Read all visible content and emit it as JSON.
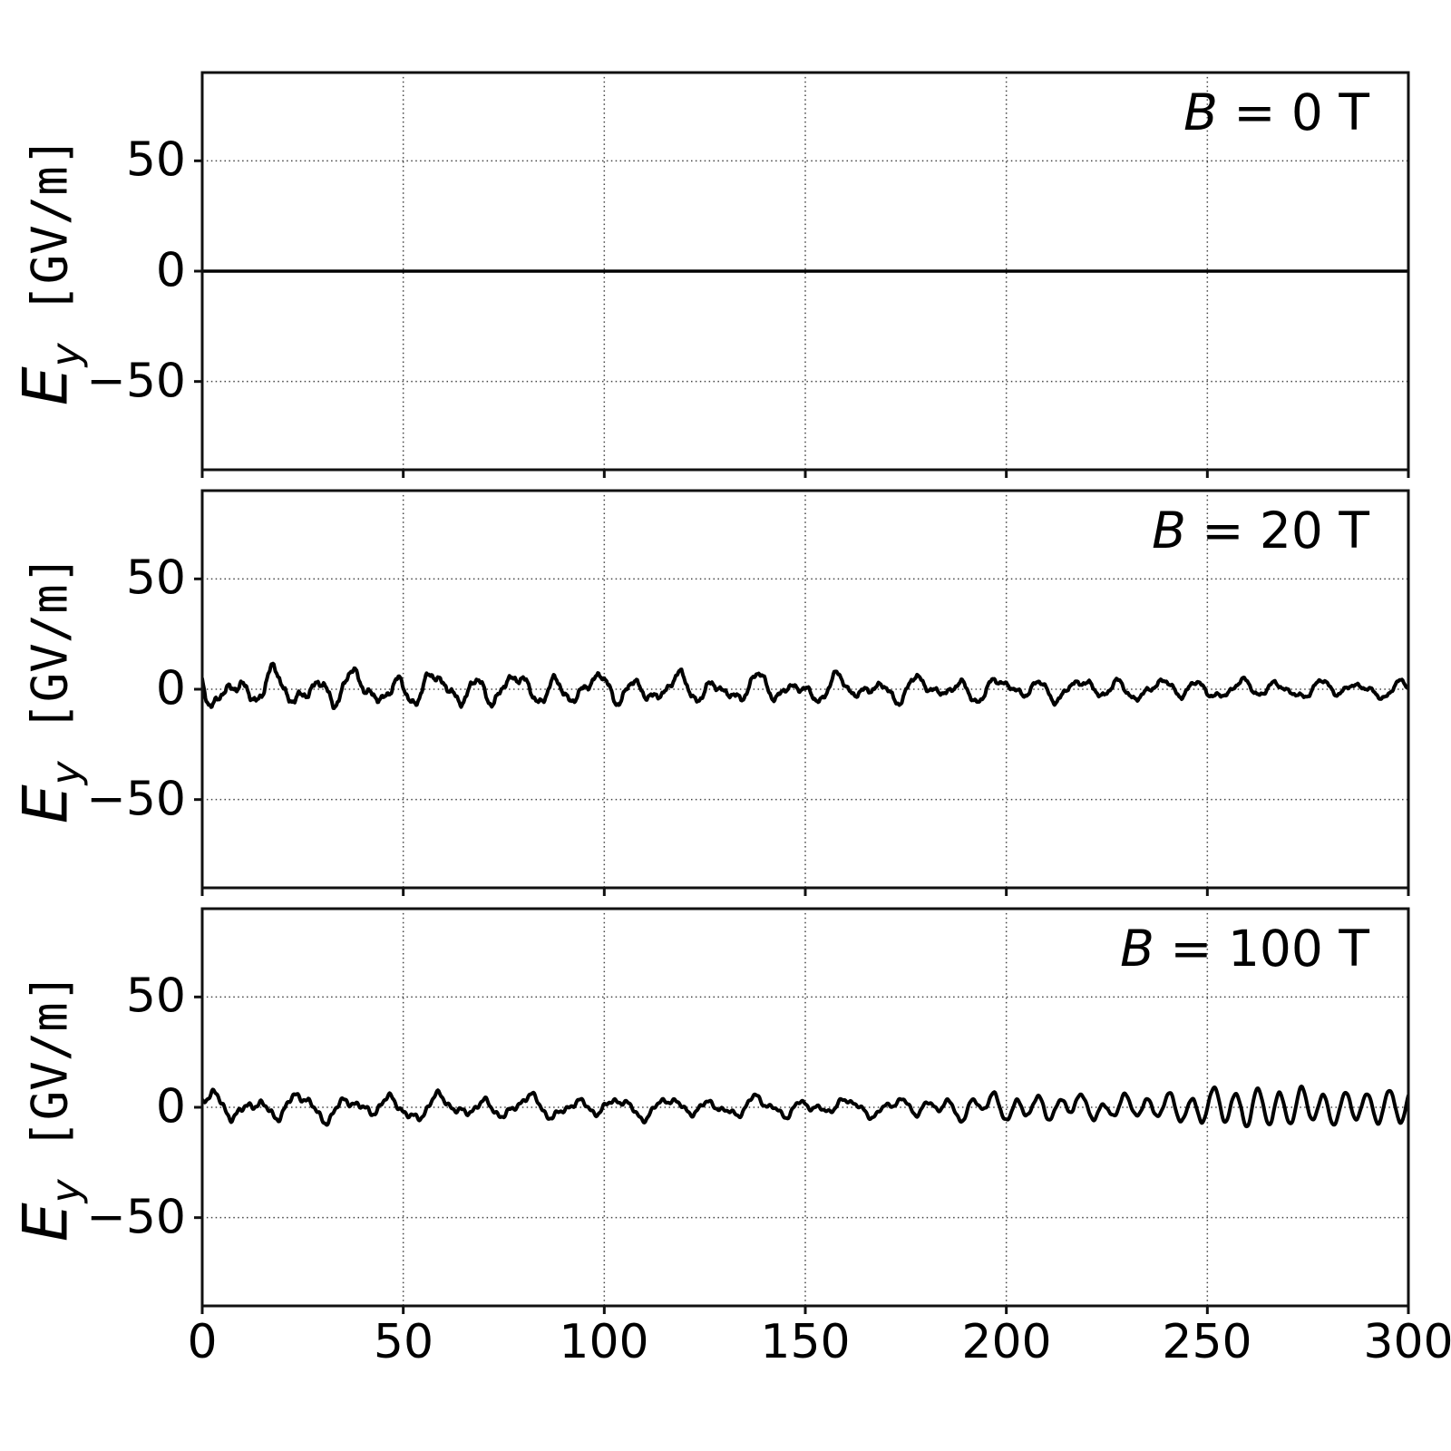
{
  "figure": {
    "background": "#ffffff",
    "description": "Three vertically stacked line subplots sharing one x-axis (0 to 300), each showing transverse electric field E_y in GV/m for a different magnetic field strength B."
  },
  "chart_data": {
    "type": "line",
    "title": "",
    "layout": {
      "panels": 3,
      "shared_x": true,
      "grid": "dotted",
      "legend": "none"
    },
    "xlim": [
      0,
      300
    ],
    "ylim": [
      -90,
      90
    ],
    "xticks": [
      0,
      50,
      100,
      150,
      200,
      250,
      300
    ],
    "xtick_labels": [
      "0",
      "50",
      "100",
      "150",
      "200",
      "250",
      "300"
    ],
    "xgrid": [
      50,
      100,
      150,
      200,
      250
    ],
    "yticks": [
      50,
      0,
      -50
    ],
    "ytick_labels": [
      "50",
      "0",
      "−50"
    ],
    "xlabel": "",
    "ylabel": {
      "symbol": "E",
      "subscript": "y",
      "unit": " [GV/m]"
    },
    "style": {
      "line_color": "#000000",
      "line_width": 4,
      "flat_line_width": 3.5,
      "spine_color": "#111111",
      "spine_width": 3,
      "tick_color": "#111111",
      "tick_width": 3,
      "tick_length": 9,
      "grid_color": "#444444",
      "grid_width": 1.5,
      "grid_dash": "1.5 3.4"
    },
    "panels": [
      {
        "annotation": {
          "var": "B",
          "rest": " = 0 T"
        },
        "series": {
          "kind": "flat",
          "value": 0,
          "description": "E_y = 0 GV/m everywhere: perfectly flat solid line along y=0."
        }
      },
      {
        "annotation": {
          "var": "B",
          "rest": " = 20 T"
        },
        "series": {
          "kind": "stochastic",
          "seed": 14,
          "components": [
            {
              "f": 0.1,
              "a": 4.4
            },
            {
              "f": 0.049,
              "a": 2.0
            },
            {
              "f": 0.157,
              "a": 2.1
            },
            {
              "f": 0.285,
              "a": 1.2
            },
            {
              "f": 0.63,
              "a": 0.6
            },
            {
              "f": 1.45,
              "a": 0.3
            }
          ],
          "envelope": {
            "start": 1.25,
            "end": 0.55
          },
          "description": "Broadband noisy fluctuations about 0: roughly ±10 GV/m near x=0, slowly calming to about ±4 GV/m near x=300; dominant ripple wavelength ~8-10 x-units."
        }
      },
      {
        "annotation": {
          "var": "B",
          "rest": " = 100 T"
        },
        "series": {
          "kind": "stochastic",
          "seed": 23,
          "components": [
            {
              "f": 0.088,
              "a": 3.6
            },
            {
              "f": 0.052,
              "a": 1.7
            },
            {
              "f": 0.165,
              "a": 1.5
            },
            {
              "f": 0.34,
              "a": 0.9
            },
            {
              "f": 0.75,
              "a": 0.5
            }
          ],
          "envelope": {
            "start": 1.2,
            "end": 0.3
          },
          "oscillation": {
            "freq": 0.183,
            "amp": 8.6,
            "onset": 120,
            "power": 1.1,
            "mod_depth": 0.22,
            "mod_freq": 0.018
          },
          "description": "Noisy fluctuations ±8 GV/m on the left that evolve into an increasingly regular fast oscillation (period ≈5.5 x-units) whose amplitude grows to about ±9 GV/m by x=300."
        }
      }
    ]
  }
}
